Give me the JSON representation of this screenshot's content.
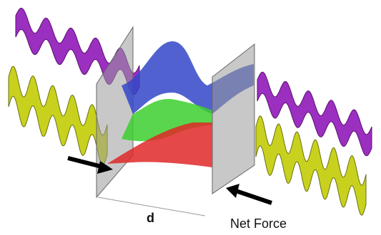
{
  "labels": {
    "distance": "d",
    "force": "Net Force"
  }
}
